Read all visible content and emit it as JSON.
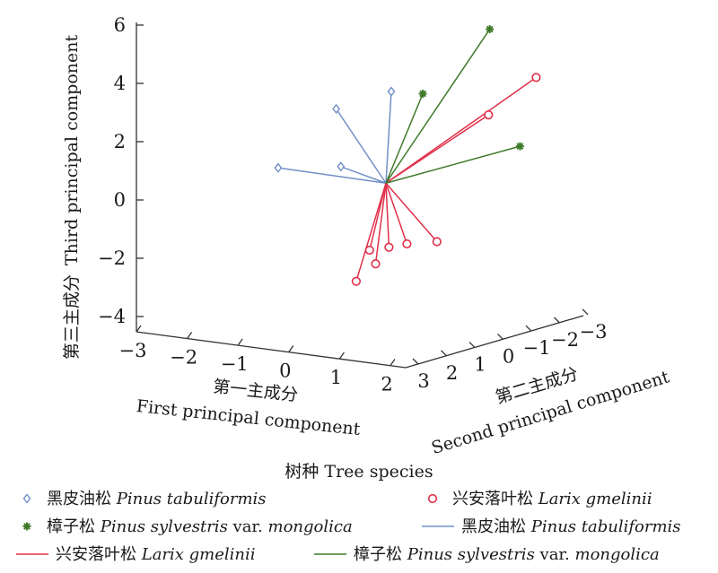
{
  "chart_data": {
    "type": "scatter",
    "title": "",
    "projection": "3d",
    "xlabel_cn": "第一主成分",
    "xlabel_en": "First principal component",
    "ylabel_cn": "第二主成分",
    "ylabel_en": "Second principal component",
    "zlabel_cn": "第三主成分",
    "zlabel_en": "Third principal component",
    "x_ticks": [
      "−3",
      "−2",
      "−1",
      "0",
      "1",
      "2"
    ],
    "y_ticks": [
      "3",
      "2",
      "1",
      "0",
      "−1",
      "−2",
      "−3"
    ],
    "z_ticks": [
      "−4",
      "−2",
      "0",
      "2",
      "4",
      "6"
    ],
    "z_range": [
      -4,
      6
    ],
    "legend_title": "树种 Tree species",
    "legend": [
      {
        "kind": "marker",
        "series": "Pinus tabuliformis",
        "cn": "黑皮油松",
        "latin": "Pinus tabuliformis",
        "suffix": ""
      },
      {
        "kind": "marker",
        "series": "Larix gmelinii",
        "cn": "兴安落叶松",
        "latin": "Larix gmelinii",
        "suffix": ""
      },
      {
        "kind": "marker",
        "series": "Pinus sylvestris var. mongolica",
        "cn": "樟子松",
        "latin": "Pinus sylvestris",
        "suffix": " var. ",
        "latin2": "mongolica"
      },
      {
        "kind": "line",
        "series": "Pinus tabuliformis",
        "cn": "黑皮油松",
        "latin": "Pinus tabuliformis",
        "suffix": ""
      },
      {
        "kind": "line",
        "series": "Larix gmelinii",
        "cn": "兴安落叶松",
        "latin": "Larix gmelinii",
        "suffix": ""
      },
      {
        "kind": "line",
        "series": "Pinus sylvestris var. mongolica",
        "cn": "樟子松",
        "latin": "Pinus sylvestris",
        "suffix": " var. ",
        "latin2": "mongolica"
      }
    ],
    "origin": {
      "x": 0,
      "y": 0,
      "z": 0.3
    },
    "series": [
      {
        "name": "Pinus tabuliformis",
        "color": "#6f8fc8",
        "marker": "diamond",
        "points": [
          {
            "x": -2.6,
            "y": -0.3,
            "z": 0.2
          },
          {
            "x": -1.9,
            "y": -1.2,
            "z": 2.1
          },
          {
            "x": -1.4,
            "y": -0.6,
            "z": 0.4
          },
          {
            "x": -1.2,
            "y": -2.0,
            "z": 2.6
          }
        ]
      },
      {
        "name": "Larix gmelinii",
        "color": "#e0304a",
        "marker": "circle",
        "points": [
          {
            "x": 0.9,
            "y": -2.1,
            "z": 2.2
          },
          {
            "x": 1.5,
            "y": -2.8,
            "z": 3.4
          },
          {
            "x": 1.4,
            "y": 0.4,
            "z": -1.3
          },
          {
            "x": 0.6,
            "y": 0.2,
            "z": -1.6
          },
          {
            "x": 0.2,
            "y": 0.2,
            "z": -1.8
          },
          {
            "x": 0.1,
            "y": 0.5,
            "z": -2.3
          },
          {
            "x": -0.1,
            "y": 0.4,
            "z": -1.9
          },
          {
            "x": -0.2,
            "y": 0.7,
            "z": -2.9
          }
        ]
      },
      {
        "name": "Pinus sylvestris var. mongolica",
        "color": "#3f7a2a",
        "marker": "star",
        "points": [
          {
            "x": -0.3,
            "y": -1.7,
            "z": 2.8
          },
          {
            "x": 0.4,
            "y": -2.9,
            "z": 4.8
          },
          {
            "x": 1.8,
            "y": -1.8,
            "z": 1.4
          }
        ]
      }
    ]
  }
}
